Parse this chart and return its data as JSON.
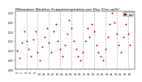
{
  "title": "Milwaukee Weather Evapotranspiration per Day (Ozs sq/ft)",
  "title_fontsize": 3.2,
  "ylim": [
    0.0,
    0.31
  ],
  "xlim": [
    -1,
    52
  ],
  "dot_color": "#cc0000",
  "line_color": "#cc0000",
  "background_color": "#ffffff",
  "plot_bg_color": "#ffffff",
  "legend_label": "ETo",
  "legend_color": "#cc0000",
  "x_values": [
    0,
    1,
    2,
    3,
    4,
    5,
    6,
    7,
    8,
    9,
    10,
    11,
    12,
    13,
    14,
    15,
    16,
    17,
    18,
    19,
    20,
    21,
    22,
    23,
    24,
    25,
    26,
    27,
    28,
    29,
    30,
    31,
    32,
    33,
    34,
    35,
    36,
    37,
    38,
    39,
    40,
    41,
    42,
    43,
    44,
    45,
    46,
    47,
    48,
    49,
    50
  ],
  "y_values": [
    0.1,
    0.06,
    0.14,
    0.2,
    0.15,
    0.11,
    0.07,
    0.16,
    0.2,
    0.09,
    0.05,
    0.12,
    0.17,
    0.22,
    0.14,
    0.09,
    0.2,
    0.24,
    0.15,
    0.11,
    0.07,
    0.13,
    0.19,
    0.26,
    0.22,
    0.15,
    0.11,
    0.07,
    0.05,
    0.09,
    0.15,
    0.22,
    0.17,
    0.24,
    0.2,
    0.13,
    0.09,
    0.07,
    0.05,
    0.11,
    0.17,
    0.24,
    0.3,
    0.25,
    0.19,
    0.13,
    0.09,
    0.17,
    0.24,
    0.19,
    0.13
  ],
  "vline_positions": [
    4,
    9,
    14,
    19,
    24,
    29,
    34,
    39,
    44,
    49
  ],
  "tick_fontsize": 2.2,
  "grid_color": "#999999",
  "grid_style": "--",
  "yticks": [
    0.0,
    0.05,
    0.1,
    0.15,
    0.2,
    0.25,
    0.3
  ],
  "xtick_step": 2
}
